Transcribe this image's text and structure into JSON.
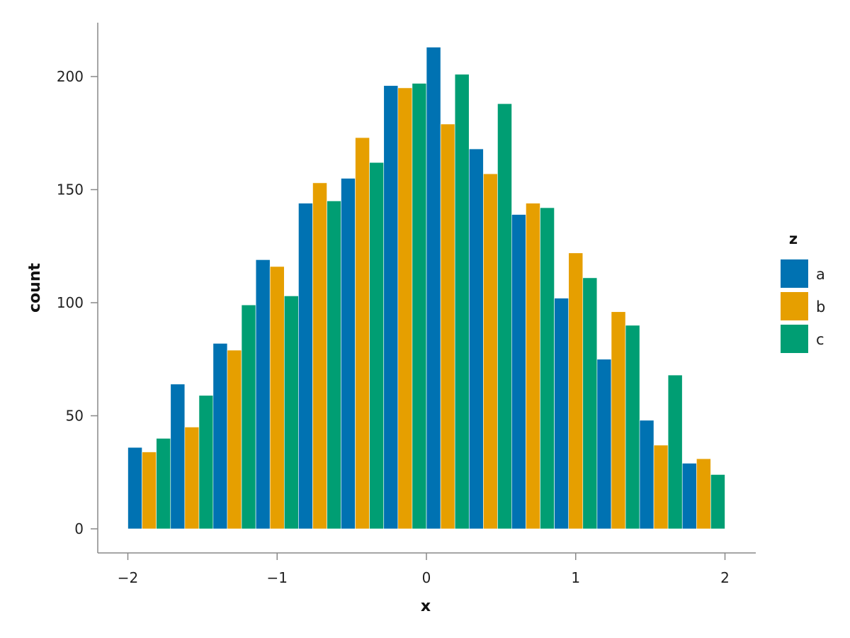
{
  "chart_data": {
    "type": "bar",
    "title": "",
    "xlabel": "x",
    "ylabel": "count",
    "xlim": [
      -2.2,
      2.2
    ],
    "ylim": [
      -10,
      224
    ],
    "x_ticks": [
      {
        "value": -2,
        "label": "−2"
      },
      {
        "value": -1,
        "label": "−1"
      },
      {
        "value": 0,
        "label": "0"
      },
      {
        "value": 1,
        "label": "1"
      },
      {
        "value": 2,
        "label": "2"
      }
    ],
    "y_ticks": [
      {
        "value": 0,
        "label": "0"
      },
      {
        "value": 50,
        "label": "50"
      },
      {
        "value": 100,
        "label": "100"
      },
      {
        "value": 150,
        "label": "150"
      },
      {
        "value": 200,
        "label": "200"
      }
    ],
    "grid": false,
    "legend": {
      "title": "z",
      "placement": "right"
    },
    "bin_centers": [
      -1.857,
      -1.571,
      -1.286,
      -1.0,
      -0.714,
      -0.429,
      -0.143,
      0.143,
      0.429,
      0.714,
      1.0,
      1.286,
      1.571,
      1.857
    ],
    "bin_width": 0.2857,
    "series": [
      {
        "name": "a",
        "color": "#0072b2",
        "values": [
          36,
          64,
          82,
          119,
          144,
          155,
          196,
          213,
          168,
          139,
          102,
          75,
          48,
          29
        ]
      },
      {
        "name": "b",
        "color": "#e69f00",
        "values": [
          34,
          45,
          79,
          116,
          153,
          173,
          195,
          179,
          157,
          144,
          122,
          96,
          37,
          31
        ]
      },
      {
        "name": "c",
        "color": "#009e73",
        "values": [
          40,
          59,
          99,
          103,
          145,
          162,
          197,
          201,
          188,
          142,
          111,
          90,
          68,
          24
        ]
      }
    ]
  }
}
